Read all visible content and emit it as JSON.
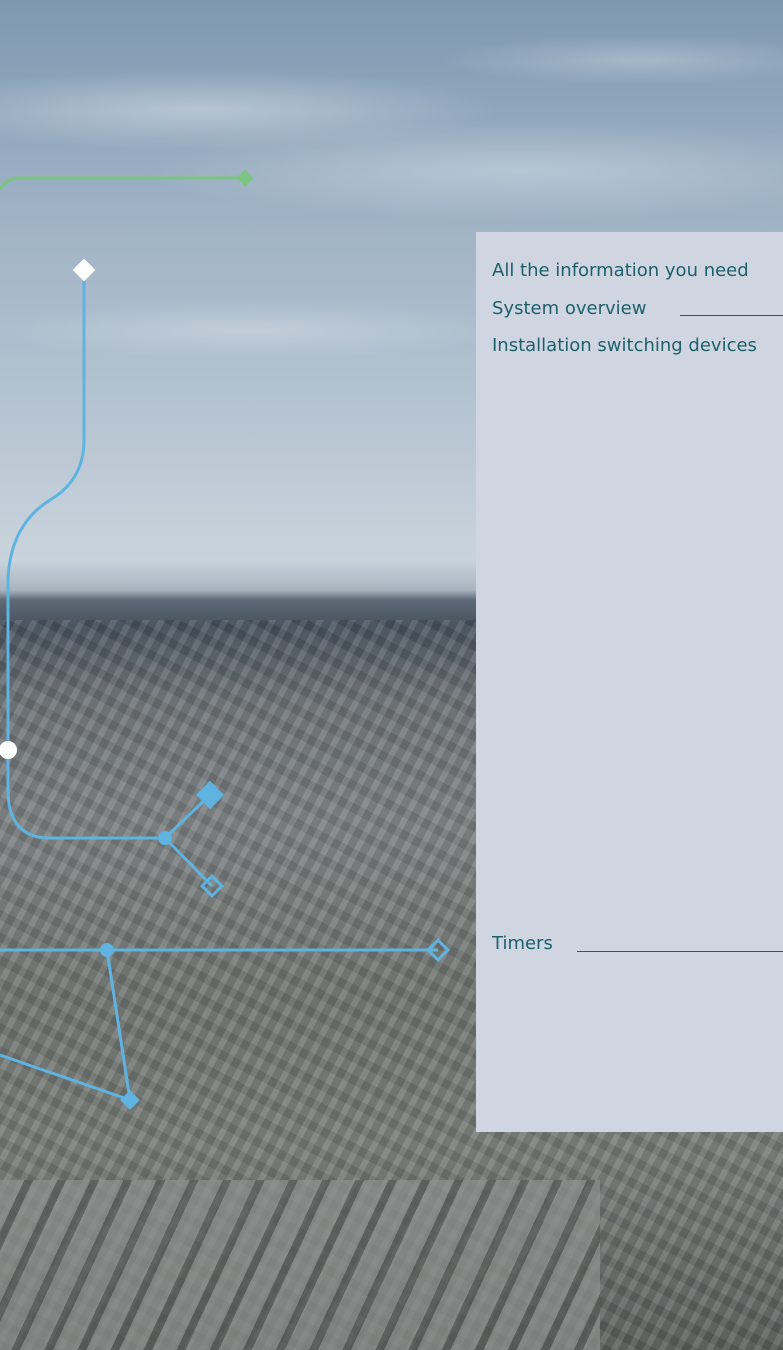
{
  "panel": {
    "items": [
      {
        "label": "All the information you need"
      },
      {
        "label": "System overview"
      },
      {
        "label": "Installation switching devices"
      },
      {
        "label": "Timers"
      }
    ]
  }
}
